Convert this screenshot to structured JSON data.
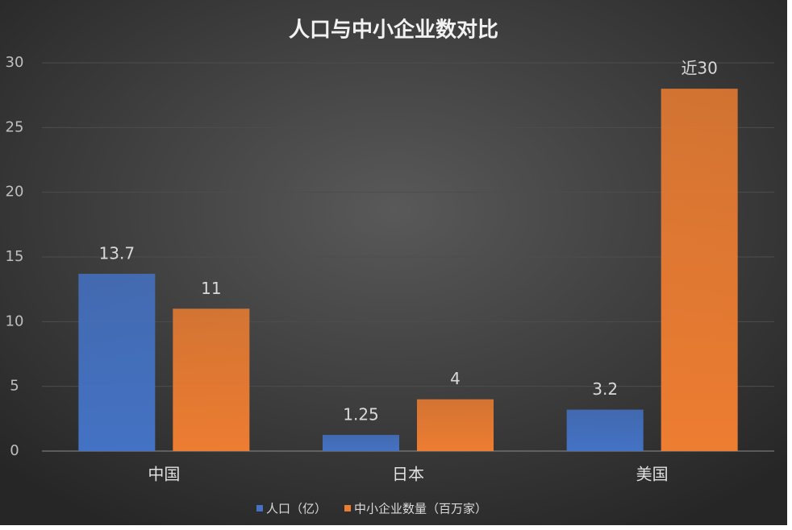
{
  "chart_data": {
    "type": "bar",
    "title": "人口与中小企业数对比",
    "categories": [
      "中国",
      "日本",
      "美国"
    ],
    "series": [
      {
        "name": "人口（亿）",
        "color": "#4472c4",
        "values": [
          13.7,
          1.25,
          3.2
        ]
      },
      {
        "name": "中小企业数量（百万家）",
        "color": "#ed7d31",
        "values": [
          11,
          4,
          28
        ],
        "value_labels": [
          "11",
          "4",
          "近30"
        ]
      }
    ],
    "ylim": [
      0,
      30
    ],
    "yticks": [
      0,
      5,
      10,
      15,
      20,
      25,
      30
    ],
    "grid": true,
    "legend": "bottom"
  }
}
